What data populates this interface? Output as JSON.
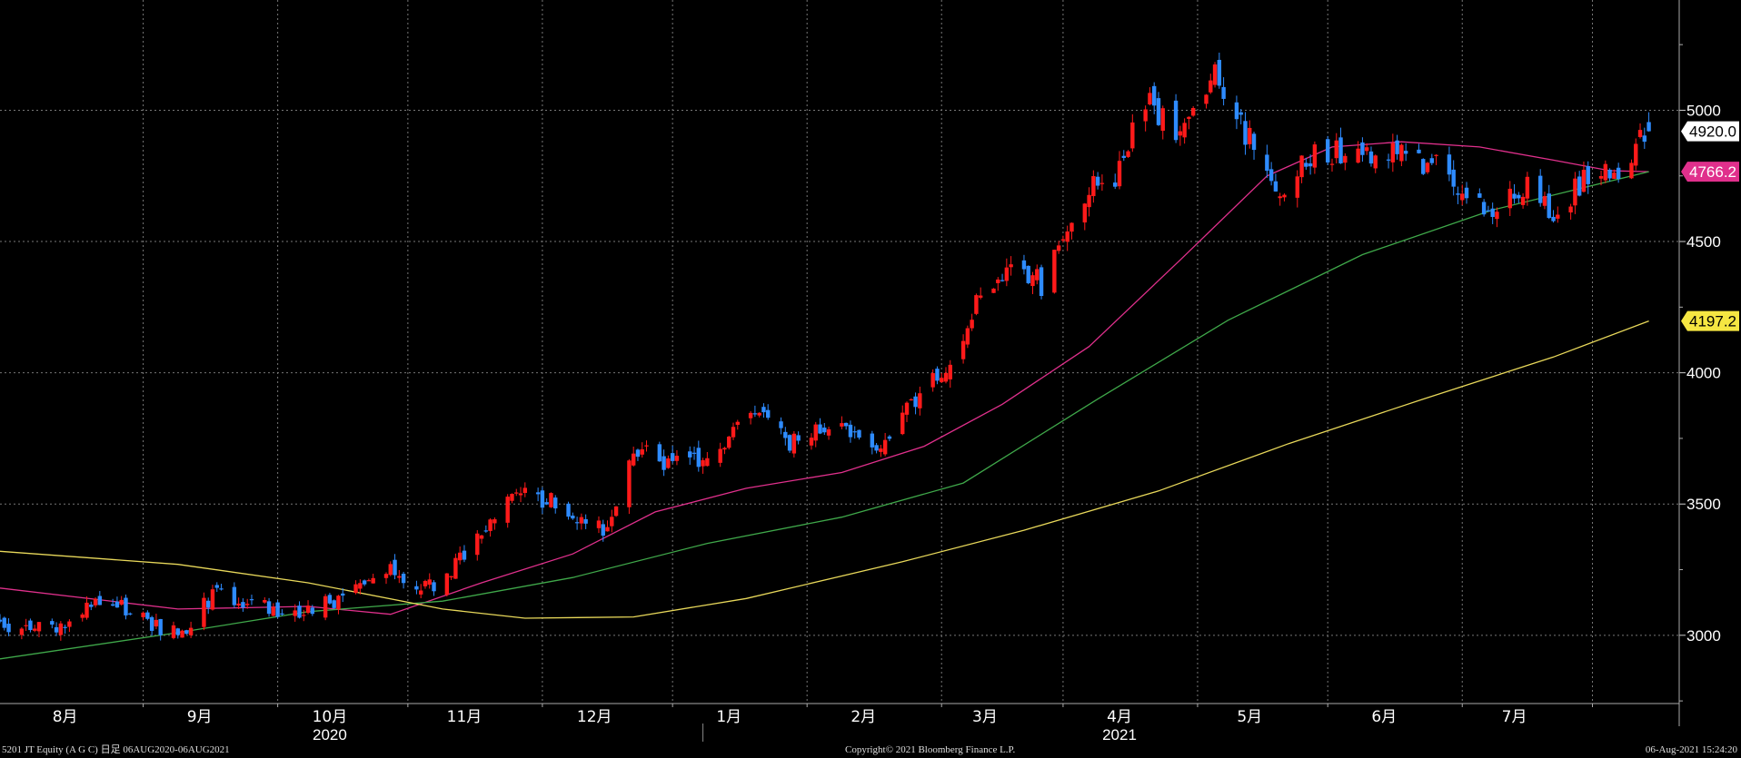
{
  "chart_data": {
    "type": "candlestick",
    "ylim": [
      2740,
      5420
    ],
    "yticks": [
      3000,
      3500,
      4000,
      4500,
      5000
    ],
    "grid": true,
    "x_range": [
      "2020-07-22",
      "2021-08-13"
    ],
    "month_labels": [
      {
        "date": "2020-08-06",
        "label": "8月"
      },
      {
        "date": "2020-09-06",
        "label": "9月"
      },
      {
        "date": "2020-10-06",
        "label": "10月"
      },
      {
        "date": "2020-11-06",
        "label": "11月"
      },
      {
        "date": "2020-12-06",
        "label": "12月"
      },
      {
        "date": "2021-01-06",
        "label": "1月"
      },
      {
        "date": "2021-02-06",
        "label": "2月"
      },
      {
        "date": "2021-03-06",
        "label": "3月"
      },
      {
        "date": "2021-04-06",
        "label": "4月"
      },
      {
        "date": "2021-05-06",
        "label": "5月"
      },
      {
        "date": "2021-06-06",
        "label": "6月"
      },
      {
        "date": "2021-07-06",
        "label": "7月"
      }
    ],
    "month_boundaries": [
      "2020-08-24",
      "2020-09-24",
      "2020-10-24",
      "2020-11-24",
      "2020-12-24",
      "2021-01-24",
      "2021-02-24",
      "2021-03-24",
      "2021-04-24",
      "2021-05-24",
      "2021-06-24",
      "2021-07-24"
    ],
    "year_labels": [
      {
        "date": "2020-10-06",
        "label": "2020"
      },
      {
        "date": "2021-04-06",
        "label": "2021"
      }
    ],
    "year_separator": "2020-12-31",
    "price_anchors": [
      [
        "2020-08-06",
        3020
      ],
      [
        "2020-08-15",
        3150
      ],
      [
        "2020-08-25",
        3050
      ],
      [
        "2020-09-01",
        3000
      ],
      [
        "2020-09-10",
        3170
      ],
      [
        "2020-09-20",
        3110
      ],
      [
        "2020-10-01",
        3090
      ],
      [
        "2020-10-10",
        3150
      ],
      [
        "2020-10-20",
        3250
      ],
      [
        "2020-10-30",
        3170
      ],
      [
        "2020-11-05",
        3300
      ],
      [
        "2020-11-12",
        3450
      ],
      [
        "2020-11-20",
        3560
      ],
      [
        "2020-11-30",
        3470
      ],
      [
        "2020-12-08",
        3400
      ],
      [
        "2020-12-15",
        3700
      ],
      [
        "2020-12-25",
        3650
      ],
      [
        "2021-01-05",
        3720
      ],
      [
        "2021-01-12",
        3870
      ],
      [
        "2021-01-20",
        3720
      ],
      [
        "2021-02-01",
        3820
      ],
      [
        "2021-02-08",
        3680
      ],
      [
        "2021-02-18",
        3900
      ],
      [
        "2021-02-26",
        4050
      ],
      [
        "2021-03-05",
        4310
      ],
      [
        "2021-03-12",
        4400
      ],
      [
        "2021-03-20",
        4330
      ],
      [
        "2021-03-27",
        4650
      ],
      [
        "2021-04-05",
        4760
      ],
      [
        "2021-04-12",
        5050
      ],
      [
        "2021-04-20",
        4900
      ],
      [
        "2021-04-28",
        5120
      ],
      [
        "2021-05-05",
        4920
      ],
      [
        "2021-05-12",
        4680
      ],
      [
        "2021-05-20",
        4820
      ],
      [
        "2021-06-01",
        4850
      ],
      [
        "2021-06-10",
        4830
      ],
      [
        "2021-06-18",
        4790
      ],
      [
        "2021-06-25",
        4680
      ],
      [
        "2021-07-02",
        4620
      ],
      [
        "2021-07-09",
        4720
      ],
      [
        "2021-07-16",
        4600
      ],
      [
        "2021-07-23",
        4770
      ],
      [
        "2021-07-28",
        4740
      ],
      [
        "2021-08-06",
        4920
      ]
    ],
    "series": [
      {
        "color": "#e0308c",
        "last_value": 4766.2,
        "points": [
          [
            "2020-07-22",
            3180
          ],
          [
            "2020-09-01",
            3100
          ],
          [
            "2020-10-01",
            3110
          ],
          [
            "2020-10-20",
            3080
          ],
          [
            "2020-11-10",
            3200
          ],
          [
            "2020-12-01",
            3310
          ],
          [
            "2020-12-20",
            3470
          ],
          [
            "2021-01-10",
            3560
          ],
          [
            "2021-02-01",
            3620
          ],
          [
            "2021-02-20",
            3720
          ],
          [
            "2021-03-10",
            3880
          ],
          [
            "2021-03-30",
            4100
          ],
          [
            "2021-04-20",
            4430
          ],
          [
            "2021-05-10",
            4750
          ],
          [
            "2021-05-25",
            4860
          ],
          [
            "2021-06-10",
            4880
          ],
          [
            "2021-06-28",
            4860
          ],
          [
            "2021-07-15",
            4810
          ],
          [
            "2021-07-28",
            4770
          ],
          [
            "2021-08-06",
            4766.2
          ]
        ]
      },
      {
        "color": "#3fa84a",
        "points": [
          [
            "2020-07-22",
            2910
          ],
          [
            "2020-09-01",
            3010
          ],
          [
            "2020-10-01",
            3090
          ],
          [
            "2020-11-01",
            3130
          ],
          [
            "2020-12-01",
            3220
          ],
          [
            "2021-01-01",
            3350
          ],
          [
            "2021-02-01",
            3450
          ],
          [
            "2021-03-01",
            3580
          ],
          [
            "2021-04-01",
            3900
          ],
          [
            "2021-05-01",
            4200
          ],
          [
            "2021-06-01",
            4450
          ],
          [
            "2021-07-01",
            4620
          ],
          [
            "2021-08-06",
            4766
          ]
        ]
      },
      {
        "color": "#e8d85a",
        "last_value": 4197.2,
        "points": [
          [
            "2020-07-22",
            3320
          ],
          [
            "2020-09-01",
            3270
          ],
          [
            "2020-10-01",
            3200
          ],
          [
            "2020-11-01",
            3100
          ],
          [
            "2020-11-20",
            3065
          ],
          [
            "2020-12-15",
            3070
          ],
          [
            "2021-01-10",
            3140
          ],
          [
            "2021-02-15",
            3280
          ],
          [
            "2021-03-15",
            3400
          ],
          [
            "2021-04-15",
            3550
          ],
          [
            "2021-05-15",
            3730
          ],
          [
            "2021-06-15",
            3900
          ],
          [
            "2021-07-15",
            4060
          ],
          [
            "2021-08-06",
            4197.2
          ]
        ]
      }
    ],
    "last_price": 4920.0,
    "last_price_label": "4920.0",
    "ma1_label": "4766.2",
    "ma3_label": "4197.2",
    "up_color": "#ff1a1a",
    "down_color": "#2e8bff",
    "badge_colors": {
      "last": "#ffffff",
      "ma1": "#e0308c",
      "ma3": "#f5e642"
    }
  },
  "footer": {
    "left": "5201 JT Equity (A G C)  日足 06AUG2020-06AUG2021",
    "center": "Copyright© 2021 Bloomberg Finance L.P.",
    "right": "06-Aug-2021 15:24:20"
  }
}
